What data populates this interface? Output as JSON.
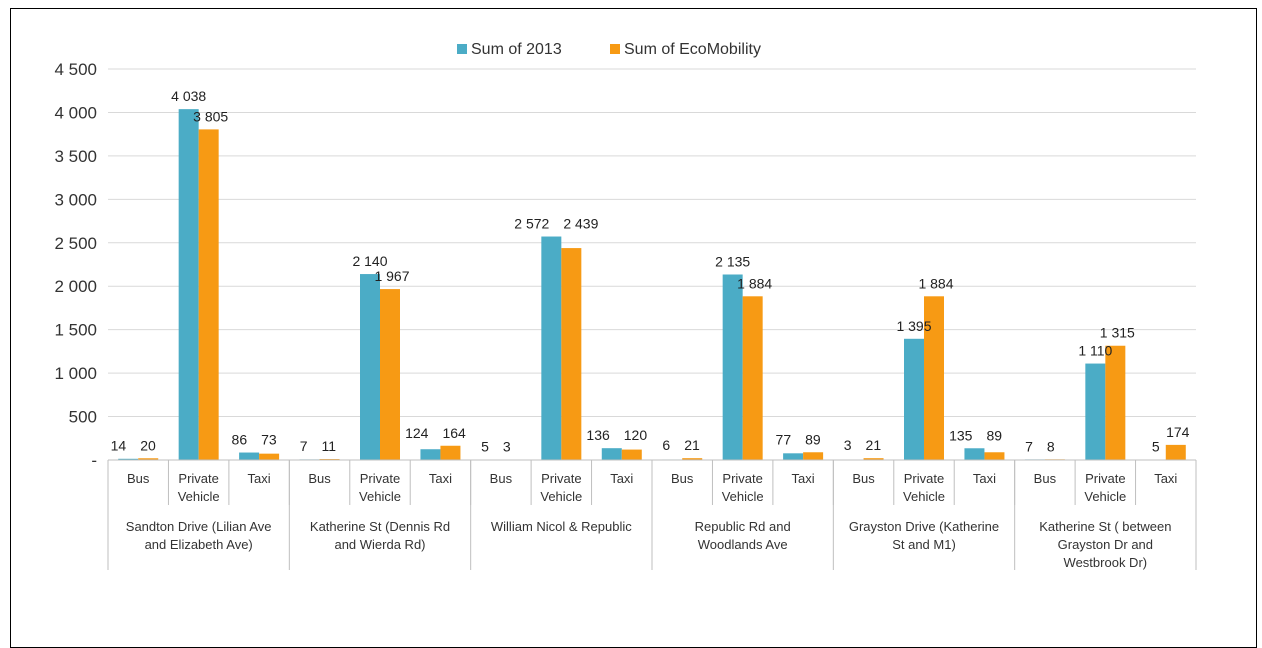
{
  "chart_data": {
    "type": "bar",
    "title": "",
    "xlabel": "",
    "ylabel": "",
    "ylim": [
      0,
      4500
    ],
    "yticks": [
      "-",
      "500",
      "1 000",
      "1 500",
      "2 000",
      "2 500",
      "3 000",
      "3 500",
      "4 000",
      "4 500"
    ],
    "grid": true,
    "legend_position": "top",
    "series": [
      {
        "name": "Sum of 2013",
        "color": "#4bacc6"
      },
      {
        "name": "Sum of EcoMobility",
        "color": "#f79a14"
      }
    ],
    "groups": [
      {
        "label_lines": [
          "Sandton Drive (Lilian Ave",
          "and Elizabeth Ave)"
        ],
        "categories": [
          {
            "label_lines": [
              "Bus"
            ],
            "values": [
              14,
              20
            ],
            "labels": [
              "14",
              "20"
            ]
          },
          {
            "label_lines": [
              "Private",
              "Vehicle"
            ],
            "values": [
              4038,
              3805
            ],
            "labels": [
              "4 038",
              "3 805"
            ]
          },
          {
            "label_lines": [
              "Taxi"
            ],
            "values": [
              86,
              73
            ],
            "labels": [
              "86",
              "73"
            ]
          }
        ]
      },
      {
        "label_lines": [
          "Katherine St (Dennis Rd",
          "and Wierda Rd)"
        ],
        "categories": [
          {
            "label_lines": [
              "Bus"
            ],
            "values": [
              7,
              11
            ],
            "labels": [
              "7",
              "11"
            ]
          },
          {
            "label_lines": [
              "Private",
              "Vehicle"
            ],
            "values": [
              2140,
              1967
            ],
            "labels": [
              "2 140",
              "1 967"
            ]
          },
          {
            "label_lines": [
              "Taxi"
            ],
            "values": [
              124,
              164
            ],
            "labels": [
              "124",
              "164"
            ]
          }
        ]
      },
      {
        "label_lines": [
          "William Nicol & Republic"
        ],
        "categories": [
          {
            "label_lines": [
              "Bus"
            ],
            "values": [
              5,
              3
            ],
            "labels": [
              "5",
              "3"
            ]
          },
          {
            "label_lines": [
              "Private",
              "Vehicle"
            ],
            "values": [
              2572,
              2439
            ],
            "labels": [
              "2 572",
              "2 439"
            ]
          },
          {
            "label_lines": [
              "Taxi"
            ],
            "values": [
              136,
              120
            ],
            "labels": [
              "136",
              "120"
            ]
          }
        ]
      },
      {
        "label_lines": [
          "Republic Rd and",
          "Woodlands Ave"
        ],
        "categories": [
          {
            "label_lines": [
              "Bus"
            ],
            "values": [
              6,
              21
            ],
            "labels": [
              "6",
              "21"
            ]
          },
          {
            "label_lines": [
              "Private",
              "Vehicle"
            ],
            "values": [
              2135,
              1884
            ],
            "labels": [
              "2 135",
              "1 884"
            ]
          },
          {
            "label_lines": [
              "Taxi"
            ],
            "values": [
              77,
              89
            ],
            "labels": [
              "77",
              "89"
            ]
          }
        ]
      },
      {
        "label_lines": [
          "Grayston Drive (Katherine",
          "St and M1)"
        ],
        "categories": [
          {
            "label_lines": [
              "Bus"
            ],
            "values": [
              3,
              21
            ],
            "labels": [
              "3",
              "21"
            ]
          },
          {
            "label_lines": [
              "Private",
              "Vehicle"
            ],
            "values": [
              1395,
              1884
            ],
            "labels": [
              "1 395",
              "1 884"
            ]
          },
          {
            "label_lines": [
              "Taxi"
            ],
            "values": [
              135,
              89
            ],
            "labels": [
              "135",
              "89"
            ]
          }
        ]
      },
      {
        "label_lines": [
          "Katherine St ( between",
          "Grayston Dr and",
          "Westbrook Dr)"
        ],
        "categories": [
          {
            "label_lines": [
              "Bus"
            ],
            "values": [
              7,
              8
            ],
            "labels": [
              "7",
              "8"
            ]
          },
          {
            "label_lines": [
              "Private",
              "Vehicle"
            ],
            "values": [
              1110,
              1315
            ],
            "labels": [
              "1 110",
              "1 315"
            ]
          },
          {
            "label_lines": [
              "Taxi"
            ],
            "values": [
              5,
              174
            ],
            "labels": [
              "5",
              "174"
            ]
          }
        ]
      }
    ]
  }
}
